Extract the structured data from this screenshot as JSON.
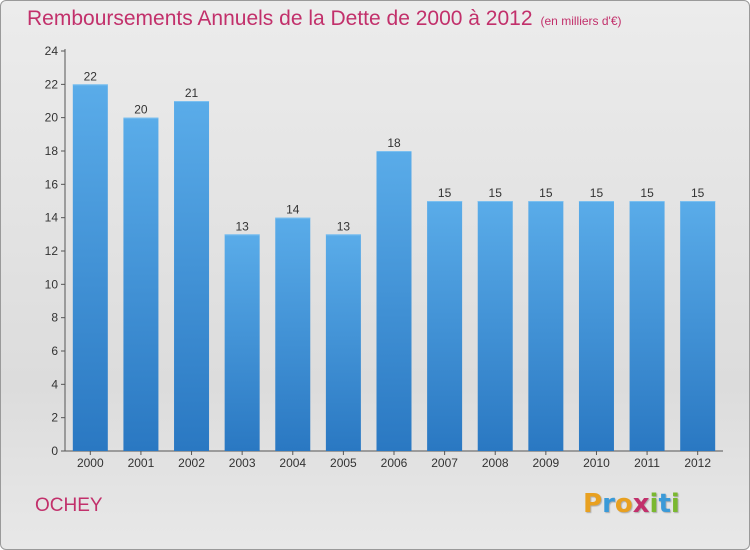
{
  "chart_data": {
    "type": "bar",
    "title": "Remboursements Annuels de la Dette de 2000 à 2012",
    "subtitle": "(en milliers d'€)",
    "categories": [
      "2000",
      "2001",
      "2002",
      "2003",
      "2004",
      "2005",
      "2006",
      "2007",
      "2008",
      "2009",
      "2010",
      "2011",
      "2012"
    ],
    "values": [
      22,
      20,
      21,
      13,
      14,
      13,
      18,
      15,
      15,
      15,
      15,
      15,
      15
    ],
    "ylim": [
      0,
      24
    ],
    "yticks": [
      0,
      2,
      4,
      6,
      8,
      10,
      12,
      14,
      16,
      18,
      20,
      22,
      24
    ],
    "grid": false,
    "bar_color": "#3a8fd8",
    "bar_color_light": "#5aace9",
    "bar_color_dark": "#2a78c2"
  },
  "commune": "OCHEY",
  "logo": {
    "letters": [
      "P",
      "r",
      "o",
      "x",
      "i",
      "t",
      "i"
    ],
    "colors": [
      "#e8a020",
      "#3a9ad8",
      "#e8a020",
      "#c2306b",
      "#7ab830",
      "#3a9ad8",
      "#7ab830"
    ]
  },
  "colors": {
    "title": "#c2306b",
    "axis": "#555555"
  }
}
